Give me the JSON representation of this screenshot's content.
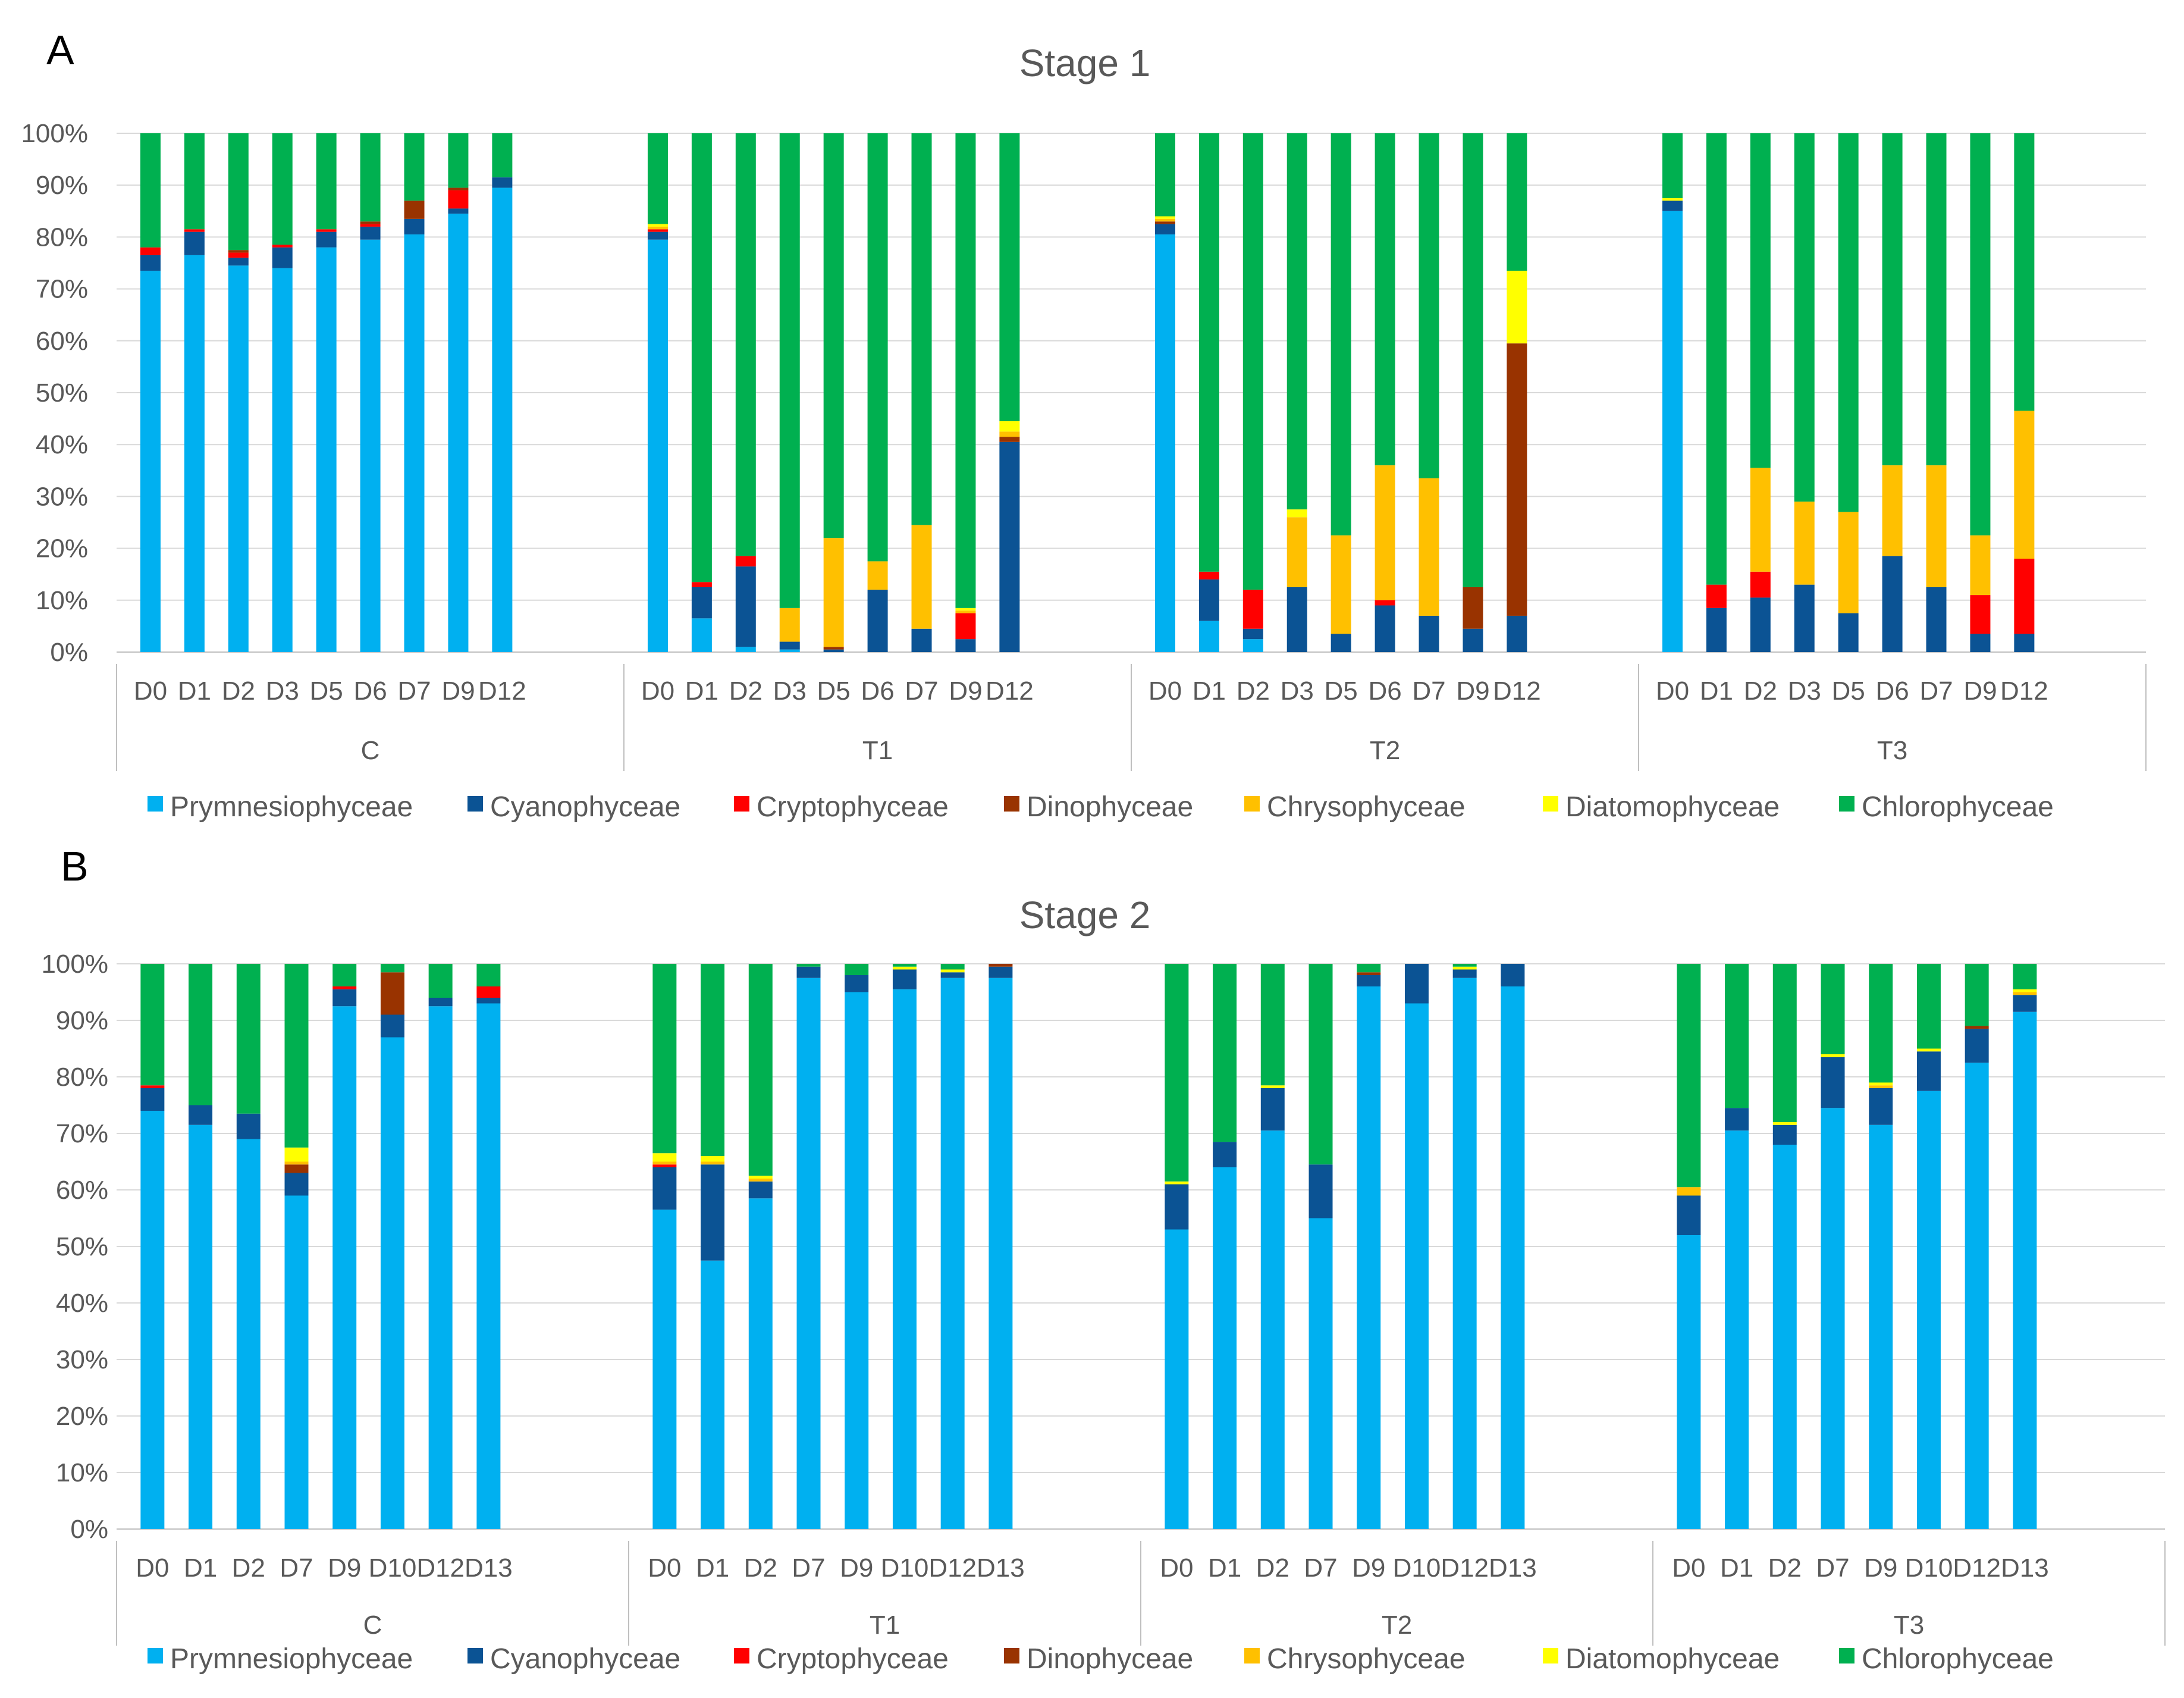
{
  "colors": {
    "Prymnesiophyceae": "#00B0F0",
    "Cyanophyceae": "#0B5394",
    "Cryptophyceae": "#FF0000",
    "Dinophyceae": "#993300",
    "Chrysophyceae": "#FFC000",
    "Diatomophyceae": "#FFFF00",
    "Chlorophyceae": "#00B050"
  },
  "chart_data": [
    {
      "type": "bar",
      "stacked": true,
      "panel": "A",
      "title": "Stage 1",
      "yticks": [
        "0%",
        "10%",
        "20%",
        "30%",
        "40%",
        "50%",
        "60%",
        "70%",
        "80%",
        "90%",
        "100%"
      ],
      "ylim": [
        0,
        100
      ],
      "legend": [
        "Prymnesiophyceae",
        "Cyanophyceae",
        "Cryptophyceae",
        "Dinophyceae",
        "Chrysophyceae",
        "Diatomophyceae",
        "Chlorophyceae"
      ],
      "groups": [
        {
          "name": "C",
          "categories": [
            "D0",
            "D1",
            "D2",
            "D3",
            "D5",
            "D6",
            "D7",
            "D9",
            "D12"
          ],
          "bars": [
            [
              73.5,
              3,
              1.5,
              0,
              0,
              0,
              22
            ],
            [
              76.5,
              4.5,
              0.5,
              0,
              0,
              0,
              18.5
            ],
            [
              74.5,
              1.5,
              1,
              0.5,
              0,
              0,
              22.5
            ],
            [
              74,
              4,
              0.5,
              0,
              0,
              0,
              21.5
            ],
            [
              78,
              3,
              0.5,
              0,
              0,
              0,
              18.5
            ],
            [
              79.5,
              2.5,
              0.5,
              0.5,
              0,
              0,
              17
            ],
            [
              80.5,
              3,
              0,
              3.5,
              0,
              0,
              13
            ],
            [
              84.5,
              1,
              3.5,
              0.5,
              0,
              0,
              10.5
            ],
            [
              89.5,
              2,
              0,
              0,
              0,
              0,
              8.5
            ]
          ]
        },
        {
          "name": "T1",
          "categories": [
            "D0",
            "D1",
            "D2",
            "D3",
            "D5",
            "D6",
            "D7",
            "D9",
            "D12"
          ],
          "bars": [
            [
              79.5,
              1.5,
              0.5,
              0,
              0.5,
              0.5,
              17.5
            ],
            [
              6.5,
              6,
              1,
              0,
              0,
              0,
              86.5
            ],
            [
              1,
              15.5,
              2,
              0,
              0,
              0,
              81.5
            ],
            [
              0.5,
              1.5,
              0,
              0,
              6.5,
              0,
              91.5
            ],
            [
              0,
              0.5,
              0,
              0.5,
              21,
              0,
              78
            ],
            [
              0,
              12,
              0,
              0,
              5.5,
              0,
              82.5
            ],
            [
              0,
              4.5,
              0,
              0,
              20,
              0,
              75.5
            ],
            [
              0,
              2.5,
              5,
              0,
              0.5,
              0.5,
              91.5
            ],
            [
              0,
              40.5,
              0,
              1,
              1,
              2,
              55.5
            ]
          ]
        },
        {
          "name": "T2",
          "categories": [
            "D0",
            "D1",
            "D2",
            "D3",
            "D5",
            "D6",
            "D7",
            "D9",
            "D12"
          ],
          "bars": [
            [
              80.5,
              2,
              0,
              0.5,
              0.5,
              0.5,
              16
            ],
            [
              6,
              8,
              1.5,
              0,
              0,
              0,
              84.5
            ],
            [
              2.5,
              2,
              7.5,
              0,
              0,
              0,
              88
            ],
            [
              0,
              12.5,
              0,
              0,
              13.5,
              1.5,
              72.5
            ],
            [
              0,
              3.5,
              0,
              0,
              19,
              0,
              77.5
            ],
            [
              0,
              9,
              1,
              0,
              26,
              0,
              64
            ],
            [
              0,
              7,
              0,
              0,
              26.5,
              0,
              66.5
            ],
            [
              0,
              4.5,
              0,
              8,
              0,
              0,
              87.5
            ],
            [
              0,
              7,
              0,
              52.5,
              0,
              14,
              26.5
            ]
          ]
        },
        {
          "name": "T3",
          "categories": [
            "D0",
            "D1",
            "D2",
            "D3",
            "D5",
            "D6",
            "D7",
            "D9",
            "D12"
          ],
          "bars": [
            [
              85,
              2,
              0,
              0,
              0,
              0.5,
              12.5
            ],
            [
              0,
              8.5,
              4.5,
              0,
              0,
              0,
              87
            ],
            [
              0,
              10.5,
              5,
              0,
              20,
              0,
              64.5
            ],
            [
              0,
              13,
              0,
              0,
              16,
              0,
              71
            ],
            [
              0,
              7.5,
              0,
              0,
              19.5,
              0,
              73
            ],
            [
              0,
              18.5,
              0,
              0,
              17.5,
              0,
              64
            ],
            [
              0,
              12.5,
              0,
              0,
              23.5,
              0,
              64
            ],
            [
              0,
              3.5,
              7.5,
              0,
              11.5,
              0,
              77.5
            ],
            [
              0,
              3.5,
              14.5,
              0,
              28.5,
              0,
              53.5
            ]
          ]
        }
      ]
    },
    {
      "type": "bar",
      "stacked": true,
      "panel": "B",
      "title": "Stage 2",
      "yticks": [
        "0%",
        "10%",
        "20%",
        "30%",
        "40%",
        "50%",
        "60%",
        "70%",
        "80%",
        "90%",
        "100%"
      ],
      "ylim": [
        0,
        100
      ],
      "legend": [
        "Prymnesiophyceae",
        "Cyanophyceae",
        "Cryptophyceae",
        "Dinophyceae",
        "Chrysophyceae",
        "Diatomophyceae",
        "Chlorophyceae"
      ],
      "groups": [
        {
          "name": "C",
          "categories": [
            "D0",
            "D1",
            "D2",
            "D7",
            "D9",
            "D10",
            "D12",
            "D13"
          ],
          "bars": [
            [
              74,
              4,
              0.5,
              0,
              0,
              0,
              21.5
            ],
            [
              71.5,
              3.5,
              0,
              0,
              0,
              0,
              25
            ],
            [
              69,
              4.5,
              0,
              0,
              0,
              0,
              26.5
            ],
            [
              59,
              4,
              0,
              1.5,
              0.5,
              2.5,
              32.5
            ],
            [
              92.5,
              3,
              0.5,
              0,
              0,
              0,
              4
            ],
            [
              87,
              4,
              0,
              7.5,
              0,
              0,
              1.5
            ],
            [
              92.5,
              1.5,
              0,
              0,
              0,
              0,
              6
            ],
            [
              93,
              1,
              2,
              0,
              0,
              0,
              4
            ]
          ]
        },
        {
          "name": "T1",
          "categories": [
            "D0",
            "D1",
            "D2",
            "D7",
            "D9",
            "D10",
            "D12",
            "D13"
          ],
          "bars": [
            [
              56.5,
              7.5,
              0.5,
              0,
              0.5,
              1.5,
              33.5
            ],
            [
              47.5,
              17,
              0,
              0,
              0.5,
              1,
              34
            ],
            [
              58.5,
              3,
              0,
              0,
              0.5,
              0.5,
              37.5
            ],
            [
              97.5,
              2,
              0,
              0,
              0,
              0,
              0.5
            ],
            [
              95,
              3,
              0,
              0,
              0,
              0,
              2
            ],
            [
              95.5,
              3.5,
              0,
              0,
              0,
              0.5,
              0.5
            ],
            [
              97.5,
              1,
              0,
              0,
              0,
              0.5,
              1
            ],
            [
              97.5,
              2,
              0,
              0.5,
              0,
              0,
              0
            ]
          ]
        },
        {
          "name": "T2",
          "categories": [
            "D0",
            "D1",
            "D2",
            "D7",
            "D9",
            "D10",
            "D12",
            "D13"
          ],
          "bars": [
            [
              53,
              8,
              0,
              0,
              0,
              0.5,
              38.5
            ],
            [
              64,
              4.5,
              0,
              0,
              0,
              0,
              31.5
            ],
            [
              70.5,
              7.5,
              0,
              0,
              0,
              0.5,
              21.5
            ],
            [
              55,
              9.5,
              0,
              0,
              0,
              0,
              35.5
            ],
            [
              96,
              2,
              0,
              0.5,
              0,
              0,
              1.5
            ],
            [
              93,
              7,
              0,
              0,
              0,
              0,
              0
            ],
            [
              97.5,
              1.5,
              0,
              0,
              0,
              0.5,
              0.5
            ],
            [
              96,
              4,
              0,
              0,
              0,
              0,
              0
            ]
          ]
        },
        {
          "name": "T3",
          "categories": [
            "D0",
            "D1",
            "D2",
            "D7",
            "D9",
            "D10",
            "D12",
            "D13"
          ],
          "bars": [
            [
              52,
              7,
              0,
              0,
              1.5,
              0,
              39.5
            ],
            [
              70.5,
              4,
              0,
              0,
              0,
              0,
              25.5
            ],
            [
              68,
              3.5,
              0,
              0,
              0,
              0.5,
              28
            ],
            [
              74.5,
              9,
              0,
              0,
              0,
              0.5,
              16
            ],
            [
              71.5,
              6.5,
              0,
              0,
              0.5,
              0.5,
              21
            ],
            [
              77.5,
              7,
              0,
              0,
              0,
              0.5,
              15
            ],
            [
              82.5,
              6,
              0,
              0.5,
              0,
              0,
              11
            ],
            [
              91.5,
              3,
              0,
              0,
              0.5,
              0.5,
              4.5
            ]
          ]
        }
      ]
    }
  ]
}
